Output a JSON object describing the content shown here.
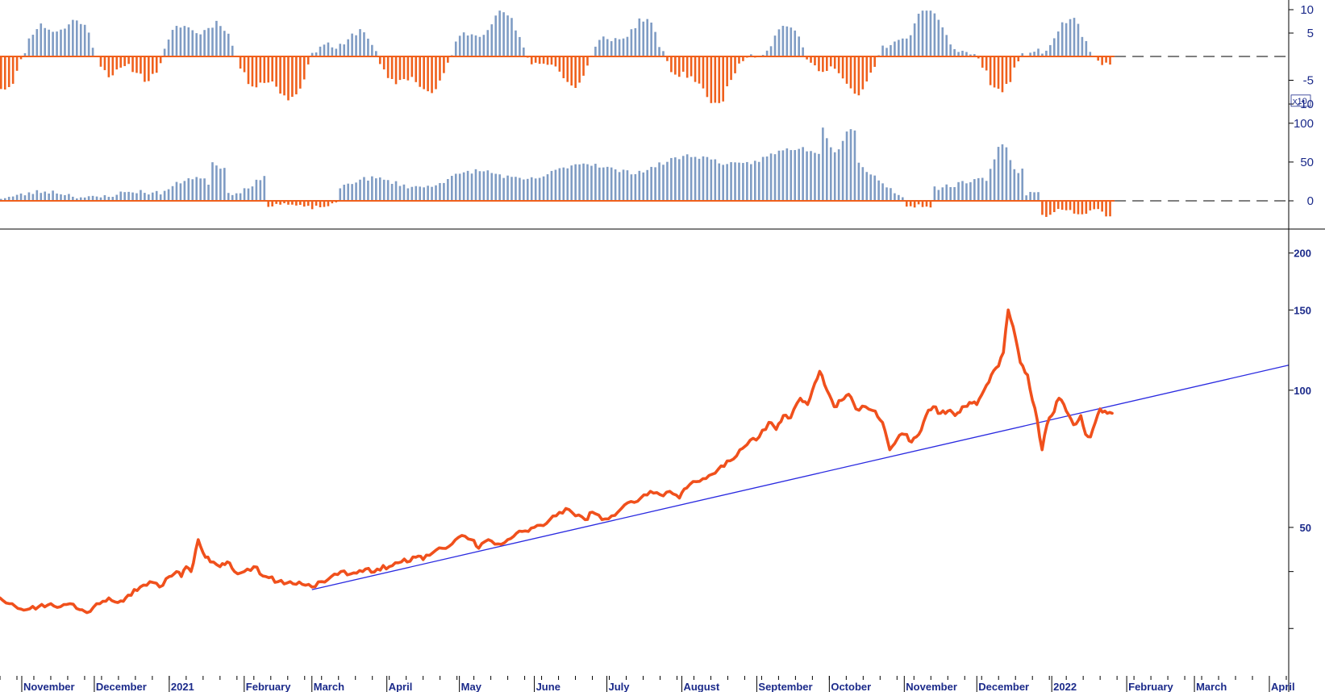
{
  "colors": {
    "price_line": "#f0501c",
    "bar_positive": "#7f9cc4",
    "bar_negative": "#f0601c",
    "trendline": "#2a2ae0",
    "axis_text": "#1b2a8a"
  },
  "chart_data": [
    {
      "id": "oscillator",
      "type": "bar",
      "y_ticks": [
        10,
        5,
        -5,
        -10
      ],
      "ylim": [
        -10,
        10
      ],
      "zero_line": "dashed",
      "seed": 11
    },
    {
      "id": "momentum",
      "type": "bar",
      "y_ticks": [
        100,
        50,
        0
      ],
      "ylim": [
        -30,
        105
      ],
      "multiplier_label": "x10",
      "zero_line": "dashed",
      "seed": 23
    },
    {
      "id": "price",
      "type": "line",
      "y_scale": "log",
      "y_ticks": [
        200,
        150,
        100,
        50
      ],
      "ylim": [
        24,
        215
      ],
      "x_labels": [
        "November",
        "December",
        "2021",
        "February",
        "March",
        "April",
        "May",
        "June",
        "July",
        "August",
        "September",
        "October",
        "November",
        "December",
        "2022",
        "February",
        "March",
        "April"
      ],
      "x_label_days": [
        0,
        30,
        61,
        92,
        120,
        151,
        181,
        212,
        242,
        273,
        304,
        334,
        365,
        395,
        426,
        457,
        485,
        516
      ],
      "x_range_days": [
        -9,
        524
      ],
      "series": [
        {
          "points": [
            [
              -9,
              35
            ],
            [
              -4,
              34
            ],
            [
              2,
              33
            ],
            [
              7,
              33.5
            ],
            [
              12,
              34
            ],
            [
              16,
              33.5
            ],
            [
              20,
              34
            ],
            [
              24,
              33
            ],
            [
              27,
              32.5
            ],
            [
              31,
              34
            ],
            [
              36,
              35
            ],
            [
              41,
              34.5
            ],
            [
              44,
              35.5
            ],
            [
              49,
              37
            ],
            [
              53,
              38
            ],
            [
              57,
              37
            ],
            [
              61,
              39
            ],
            [
              64,
              40
            ],
            [
              66,
              39
            ],
            [
              68,
              41
            ],
            [
              70,
              40
            ],
            [
              73,
              47
            ],
            [
              75,
              44
            ],
            [
              78,
              42
            ],
            [
              82,
              41
            ],
            [
              85,
              42
            ],
            [
              88,
              40
            ],
            [
              92,
              40
            ],
            [
              96,
              41
            ],
            [
              101,
              39
            ],
            [
              106,
              38
            ],
            [
              111,
              38
            ],
            [
              116,
              37.5
            ],
            [
              120,
              37
            ],
            [
              124,
              38
            ],
            [
              128,
              39
            ],
            [
              132,
              40
            ],
            [
              136,
              39.5
            ],
            [
              141,
              40
            ],
            [
              147,
              40.5
            ],
            [
              152,
              41
            ],
            [
              157,
              42
            ],
            [
              163,
              43
            ],
            [
              166,
              42.5
            ],
            [
              170,
              44
            ],
            [
              174,
              45
            ],
            [
              178,
              46
            ],
            [
              182,
              48
            ],
            [
              186,
              47
            ],
            [
              189,
              45
            ],
            [
              193,
              47
            ],
            [
              197,
              46
            ],
            [
              201,
              47
            ],
            [
              207,
              49
            ],
            [
              212,
              50
            ],
            [
              217,
              51
            ],
            [
              221,
              53
            ],
            [
              225,
              55
            ],
            [
              229,
              53
            ],
            [
              233,
              52
            ],
            [
              236,
              54
            ],
            [
              240,
              52
            ],
            [
              244,
              53
            ],
            [
              248,
              55
            ],
            [
              252,
              57
            ],
            [
              256,
              58
            ],
            [
              260,
              60
            ],
            [
              264,
              59
            ],
            [
              268,
              60
            ],
            [
              272,
              58
            ],
            [
              275,
              61
            ],
            [
              279,
              63
            ],
            [
              283,
              64
            ],
            [
              288,
              67
            ],
            [
              293,
              70
            ],
            [
              297,
              74
            ],
            [
              300,
              76
            ],
            [
              305,
              79
            ],
            [
              309,
              85
            ],
            [
              312,
              82
            ],
            [
              315,
              88
            ],
            [
              318,
              87
            ],
            [
              322,
              96
            ],
            [
              325,
              93
            ],
            [
              327,
              100
            ],
            [
              330,
              110
            ],
            [
              333,
              100
            ],
            [
              336,
              92
            ],
            [
              339,
              95
            ],
            [
              342,
              98
            ],
            [
              345,
              91
            ],
            [
              349,
              92
            ],
            [
              353,
              90
            ],
            [
              356,
              85
            ],
            [
              359,
              74
            ],
            [
              362,
              78
            ],
            [
              365,
              80
            ],
            [
              368,
              77
            ],
            [
              371,
              80
            ],
            [
              374,
              88
            ],
            [
              377,
              92
            ],
            [
              380,
              89
            ],
            [
              383,
              90
            ],
            [
              386,
              88
            ],
            [
              389,
              92
            ],
            [
              392,
              94
            ],
            [
              395,
              93
            ],
            [
              398,
              100
            ],
            [
              401,
              108
            ],
            [
              404,
              113
            ],
            [
              406,
              121
            ],
            [
              408,
              150
            ],
            [
              410,
              138
            ],
            [
              413,
              115
            ],
            [
              416,
              108
            ],
            [
              418,
              95
            ],
            [
              420,
              86
            ],
            [
              422,
              74
            ],
            [
              424,
              84
            ],
            [
              426,
              88
            ],
            [
              429,
              96
            ],
            [
              432,
              90
            ],
            [
              435,
              84
            ],
            [
              438,
              88
            ],
            [
              440,
              80
            ],
            [
              442,
              79
            ],
            [
              444,
              85
            ],
            [
              446,
              91
            ],
            [
              448,
              90
            ],
            [
              451,
              89
            ]
          ]
        }
      ],
      "trendline": [
        [
          120,
          36.5
        ],
        [
          524,
          113.5
        ]
      ]
    }
  ]
}
